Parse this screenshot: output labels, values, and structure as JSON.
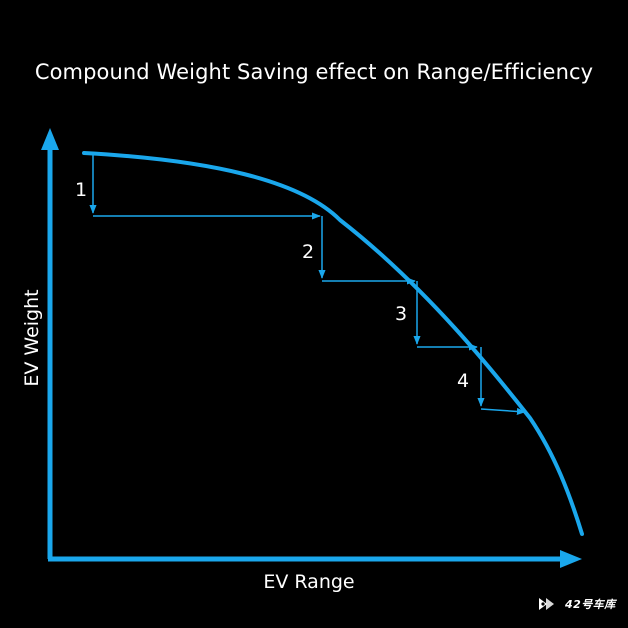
{
  "title": "Compound Weight Saving effect on Range/Efficiency",
  "axes": {
    "y_label": "EV Weight",
    "x_label": "EV Range"
  },
  "steps": [
    {
      "label": "1"
    },
    {
      "label": "2"
    },
    {
      "label": "3"
    },
    {
      "label": "4"
    }
  ],
  "watermark": {
    "text": "42号车库",
    "icon": "play-logo-icon"
  },
  "colors": {
    "background": "#000000",
    "accent": "#1aa7ec",
    "text": "#ffffff"
  }
}
